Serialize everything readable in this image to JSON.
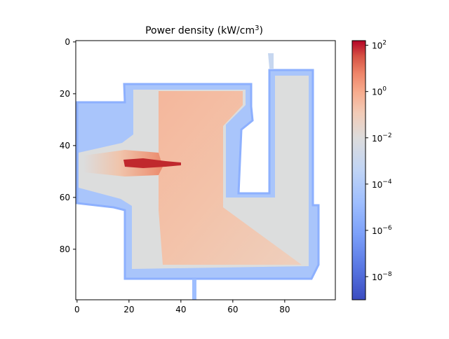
{
  "chart_data": {
    "type": "heatmap",
    "title": "Power density (kW/cm",
    "title_sup": "3",
    "title_end": ")",
    "xlim": [
      -0.5,
      99.5
    ],
    "ylim": [
      99.5,
      -0.5
    ],
    "x_ticks": [
      0,
      20,
      40,
      60,
      80
    ],
    "y_ticks": [
      0,
      20,
      40,
      60,
      80
    ],
    "colormap": "coolwarm",
    "color_scale": "log",
    "colorbar": {
      "ticks": [
        {
          "base": "10",
          "exp": "2",
          "value": 100
        },
        {
          "base": "10",
          "exp": "0",
          "value": 1
        },
        {
          "base": "10",
          "exp": "−2",
          "value": 0.01
        },
        {
          "base": "10",
          "exp": "−4",
          "value": 0.0001
        },
        {
          "base": "10",
          "exp": "−6",
          "value": 1e-06
        },
        {
          "base": "10",
          "exp": "−8",
          "value": 1e-08
        }
      ],
      "vmin_log10": -9.0,
      "vmax_log10": 2.2
    },
    "colors": {
      "cold": "#3b4cc0",
      "mid": "#dddddd",
      "hot": "#b40426"
    }
  }
}
